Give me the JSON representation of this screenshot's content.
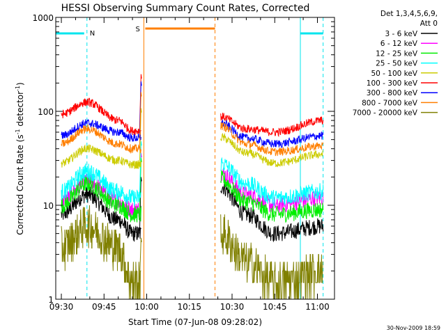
{
  "chart_data": {
    "type": "line",
    "title": "HESSI Observing Summary Count Rates, Corrected",
    "xlabel": "Start Time (07-Jun-08 09:28:02)",
    "ylabel_main": "Corrected Count Rate (s",
    "ylabel_sup1": "-1",
    "ylabel_mid": " detector",
    "ylabel_sup2": "-1",
    "ylabel_end": ")",
    "ylabel": "Corrected Count Rate (s-1 detector-1)",
    "y_scale": "log",
    "xlim": [
      "09:28:02",
      "11:06:00"
    ],
    "ylim": [
      1,
      1000
    ],
    "x_ticks": [
      "09:30",
      "09:45",
      "10:00",
      "10:15",
      "10:30",
      "10:45",
      "11:00"
    ],
    "y_ticks": [
      "1",
      "10",
      "100",
      "1000"
    ],
    "legend_header": [
      "Det 1,3,4,5,6,9,",
      "Att 0"
    ],
    "legend_position": "right",
    "footer": "30-Nov-2009 18:59",
    "markers": [
      {
        "label": "N",
        "color": "#00e5ee",
        "times": [
          "09:28:02",
          "09:39:00",
          "10:54:00",
          "11:02:00"
        ]
      },
      {
        "label": "S",
        "color": "#ff7f00",
        "times": [
          "09:59:00",
          "10:24:00"
        ]
      }
    ],
    "series": [
      {
        "name": "3 - 6 keV",
        "color": "#000000",
        "values_at": {
          "09:30": 8,
          "09:39": 13,
          "09:50": 7,
          "09:55": 5,
          "10:26": 16,
          "10:35": 8,
          "10:45": 5,
          "11:02": 6
        }
      },
      {
        "name": "6 - 12 keV",
        "color": "#ff00ff",
        "values_at": {
          "09:30": 11,
          "09:39": 18,
          "09:50": 11,
          "09:55": 9,
          "10:26": 22,
          "10:35": 13,
          "10:45": 10,
          "11:02": 12
        }
      },
      {
        "name": "12 - 25 keV",
        "color": "#00ee00",
        "values_at": {
          "09:30": 10,
          "09:39": 17,
          "09:50": 10,
          "09:55": 8,
          "10:26": 19,
          "10:35": 11,
          "10:45": 8,
          "11:02": 9
        }
      },
      {
        "name": "25 - 50 keV",
        "color": "#00ffff",
        "values_at": {
          "09:30": 14,
          "09:39": 23,
          "09:50": 14,
          "09:55": 12,
          "10:26": 28,
          "10:35": 17,
          "10:45": 12,
          "11:02": 14
        }
      },
      {
        "name": "50 - 100 keV",
        "color": "#cccc00",
        "values_at": {
          "09:30": 28,
          "09:39": 40,
          "09:50": 30,
          "09:55": 27,
          "10:26": 53,
          "10:35": 36,
          "10:45": 28,
          "11:02": 35
        }
      },
      {
        "name": "100 - 300 keV",
        "color": "#ff0000",
        "values_at": {
          "09:30": 93,
          "09:39": 125,
          "09:50": 80,
          "09:55": 62,
          "10:26": 88,
          "10:35": 65,
          "10:45": 60,
          "11:02": 80
        }
      },
      {
        "name": "300 - 800 keV",
        "color": "#0000ff",
        "values_at": {
          "09:30": 55,
          "09:39": 75,
          "09:50": 60,
          "09:55": 52,
          "10:26": 75,
          "10:35": 52,
          "10:45": 45,
          "11:02": 55
        }
      },
      {
        "name": "800 - 7000 keV",
        "color": "#ff7f00",
        "values_at": {
          "09:30": 45,
          "09:39": 65,
          "09:50": 45,
          "09:55": 40,
          "10:26": 70,
          "10:35": 45,
          "10:45": 37,
          "11:02": 43
        }
      },
      {
        "name": "7000 - 20000 keV",
        "color": "#808000",
        "values_at": {
          "09:30": 3.5,
          "09:39": 6,
          "09:50": 3.5,
          "09:55": 1.5,
          "10:26": 5,
          "10:35": 2.5,
          "10:45": 1.5,
          "11:02": 2
        }
      }
    ],
    "flare_spike": {
      "time": "09:58:00",
      "peak": 250
    }
  }
}
